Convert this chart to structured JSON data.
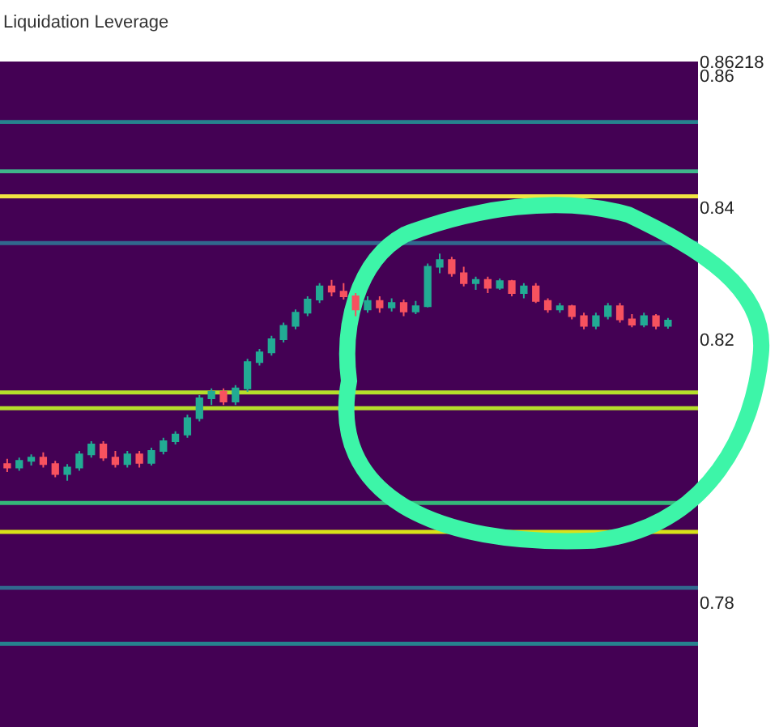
{
  "chart_data": {
    "type": "candlestick",
    "annotations": [
      "Liquidation Leverage"
    ],
    "categories": [
      null,
      null,
      null,
      null,
      null,
      null,
      null,
      null,
      null,
      null,
      null,
      null,
      null,
      null,
      null,
      null,
      null,
      null,
      null,
      null,
      null,
      null,
      null,
      null,
      null,
      null,
      null,
      null,
      null,
      null,
      null,
      null,
      null,
      null,
      null,
      null,
      null,
      null,
      null,
      null,
      null,
      null,
      null,
      null,
      null,
      null,
      null,
      null,
      null,
      null,
      null,
      null,
      null,
      null,
      null,
      null
    ],
    "ohlc": [
      [
        0.801,
        0.8018,
        0.7998,
        0.8005
      ],
      [
        0.8005,
        0.802,
        0.8,
        0.8015
      ],
      [
        0.8015,
        0.8025,
        0.8008,
        0.802
      ],
      [
        0.802,
        0.8028,
        0.8005,
        0.801
      ],
      [
        0.801,
        0.8015,
        0.799,
        0.7995
      ],
      [
        0.7995,
        0.801,
        0.7985,
        0.8005
      ],
      [
        0.8005,
        0.803,
        0.8,
        0.8025
      ],
      [
        0.8025,
        0.8045,
        0.802,
        0.804
      ],
      [
        0.804,
        0.8045,
        0.8015,
        0.802
      ],
      [
        0.802,
        0.803,
        0.8005,
        0.801
      ],
      [
        0.801,
        0.803,
        0.8005,
        0.8025
      ],
      [
        0.8025,
        0.803,
        0.8005,
        0.8012
      ],
      [
        0.8012,
        0.8035,
        0.8008,
        0.803
      ],
      [
        0.803,
        0.805,
        0.8025,
        0.8045
      ],
      [
        0.8045,
        0.806,
        0.804,
        0.8055
      ],
      [
        0.8055,
        0.8085,
        0.805,
        0.808
      ],
      [
        0.808,
        0.8115,
        0.8075,
        0.811
      ],
      [
        0.811,
        0.8125,
        0.81,
        0.812
      ],
      [
        0.812,
        0.8125,
        0.81,
        0.8105
      ],
      [
        0.8105,
        0.813,
        0.81,
        0.8125
      ],
      [
        0.8125,
        0.817,
        0.812,
        0.8165
      ],
      [
        0.8165,
        0.8185,
        0.816,
        0.818
      ],
      [
        0.818,
        0.8205,
        0.8175,
        0.82
      ],
      [
        0.82,
        0.8225,
        0.8195,
        0.822
      ],
      [
        0.822,
        0.8245,
        0.8215,
        0.824
      ],
      [
        0.824,
        0.8265,
        0.8235,
        0.826
      ],
      [
        0.826,
        0.8285,
        0.8255,
        0.828
      ],
      [
        0.828,
        0.829,
        0.8265,
        0.8272
      ],
      [
        0.8272,
        0.8285,
        0.826,
        0.8265
      ],
      [
        0.8265,
        0.827,
        0.8235,
        0.8245
      ],
      [
        0.8245,
        0.8265,
        0.824,
        0.8258
      ],
      [
        0.8258,
        0.8265,
        0.824,
        0.8248
      ],
      [
        0.8248,
        0.8262,
        0.8242,
        0.8255
      ],
      [
        0.8255,
        0.826,
        0.8235,
        0.8242
      ],
      [
        0.8242,
        0.8258,
        0.8238,
        0.825
      ],
      [
        0.825,
        0.8315,
        0.8248,
        0.831
      ],
      [
        0.831,
        0.833,
        0.83,
        0.832
      ],
      [
        0.832,
        0.8325,
        0.8295,
        0.83
      ],
      [
        0.83,
        0.831,
        0.828,
        0.8285
      ],
      [
        0.8285,
        0.8295,
        0.8275,
        0.829
      ],
      [
        0.829,
        0.8295,
        0.827,
        0.8278
      ],
      [
        0.8278,
        0.8292,
        0.8275,
        0.8288
      ],
      [
        0.8288,
        0.829,
        0.8265,
        0.827
      ],
      [
        0.827,
        0.8285,
        0.8262,
        0.828
      ],
      [
        0.828,
        0.8285,
        0.8255,
        0.8258
      ],
      [
        0.8258,
        0.8262,
        0.824,
        0.8245
      ],
      [
        0.8245,
        0.8255,
        0.824,
        0.825
      ],
      [
        0.825,
        0.8252,
        0.823,
        0.8235
      ],
      [
        0.8235,
        0.824,
        0.8215,
        0.822
      ],
      [
        0.822,
        0.824,
        0.8215,
        0.8235
      ],
      [
        0.8235,
        0.8255,
        0.823,
        0.825
      ],
      [
        0.825,
        0.8255,
        0.8225,
        0.823
      ],
      [
        0.823,
        0.8238,
        0.8218,
        0.8222
      ],
      [
        0.8222,
        0.824,
        0.8218,
        0.8235
      ],
      [
        0.8235,
        0.8238,
        0.8215,
        0.822
      ],
      [
        0.822,
        0.8232,
        0.8216,
        0.8228
      ]
    ],
    "colors": [
      "#f7525f",
      "#22ab94",
      "#22ab94",
      "#f7525f",
      "#f7525f",
      "#22ab94",
      "#22ab94",
      "#22ab94",
      "#f7525f",
      "#f7525f",
      "#22ab94",
      "#f7525f",
      "#22ab94",
      "#22ab94",
      "#22ab94",
      "#22ab94",
      "#22ab94",
      "#22ab94",
      "#f7525f",
      "#22ab94",
      "#22ab94",
      "#22ab94",
      "#22ab94",
      "#22ab94",
      "#22ab94",
      "#22ab94",
      "#22ab94",
      "#f7525f",
      "#f7525f",
      "#f7525f",
      "#22ab94",
      "#f7525f",
      "#22ab94",
      "#f7525f",
      "#22ab94",
      "#22ab94",
      "#22ab94",
      "#f7525f",
      "#f7525f",
      "#22ab94",
      "#f7525f",
      "#22ab94",
      "#f7525f",
      "#22ab94",
      "#f7525f",
      "#f7525f",
      "#22ab94",
      "#f7525f",
      "#f7525f",
      "#22ab94",
      "#22ab94",
      "#f7525f",
      "#f7525f",
      "#22ab94",
      "#f7525f",
      "#22ab94"
    ],
    "ylim": [
      0.76106,
      0.86218
    ],
    "yticks": [
      0.78,
      0.82,
      0.84,
      0.86,
      0.86218
    ],
    "tick_labels": "y",
    "grid": false,
    "bands": [
      {
        "axis": "y",
        "from": 0.8527,
        "to": 0.8533,
        "color": "#26828e"
      },
      {
        "axis": "y",
        "from": 0.8452,
        "to": 0.8458,
        "color": "#3fb58a"
      },
      {
        "axis": "y",
        "from": 0.8414,
        "to": 0.842,
        "color": "#f0e442"
      },
      {
        "axis": "y",
        "from": 0.8343,
        "to": 0.8349,
        "color": "#31688e"
      },
      {
        "axis": "y",
        "from": 0.8116,
        "to": 0.8122,
        "color": "#b5de2b"
      },
      {
        "axis": "y",
        "from": 0.8092,
        "to": 0.8098,
        "color": "#b5de2b"
      },
      {
        "axis": "y",
        "from": 0.7948,
        "to": 0.7954,
        "color": "#35b779"
      },
      {
        "axis": "y",
        "from": 0.7904,
        "to": 0.791,
        "color": "#d8e219"
      },
      {
        "axis": "y",
        "from": 0.7819,
        "to": 0.7825,
        "color": "#31688e"
      },
      {
        "axis": "y",
        "from": 0.7734,
        "to": 0.774,
        "color": "#26828e"
      }
    ]
  }
}
